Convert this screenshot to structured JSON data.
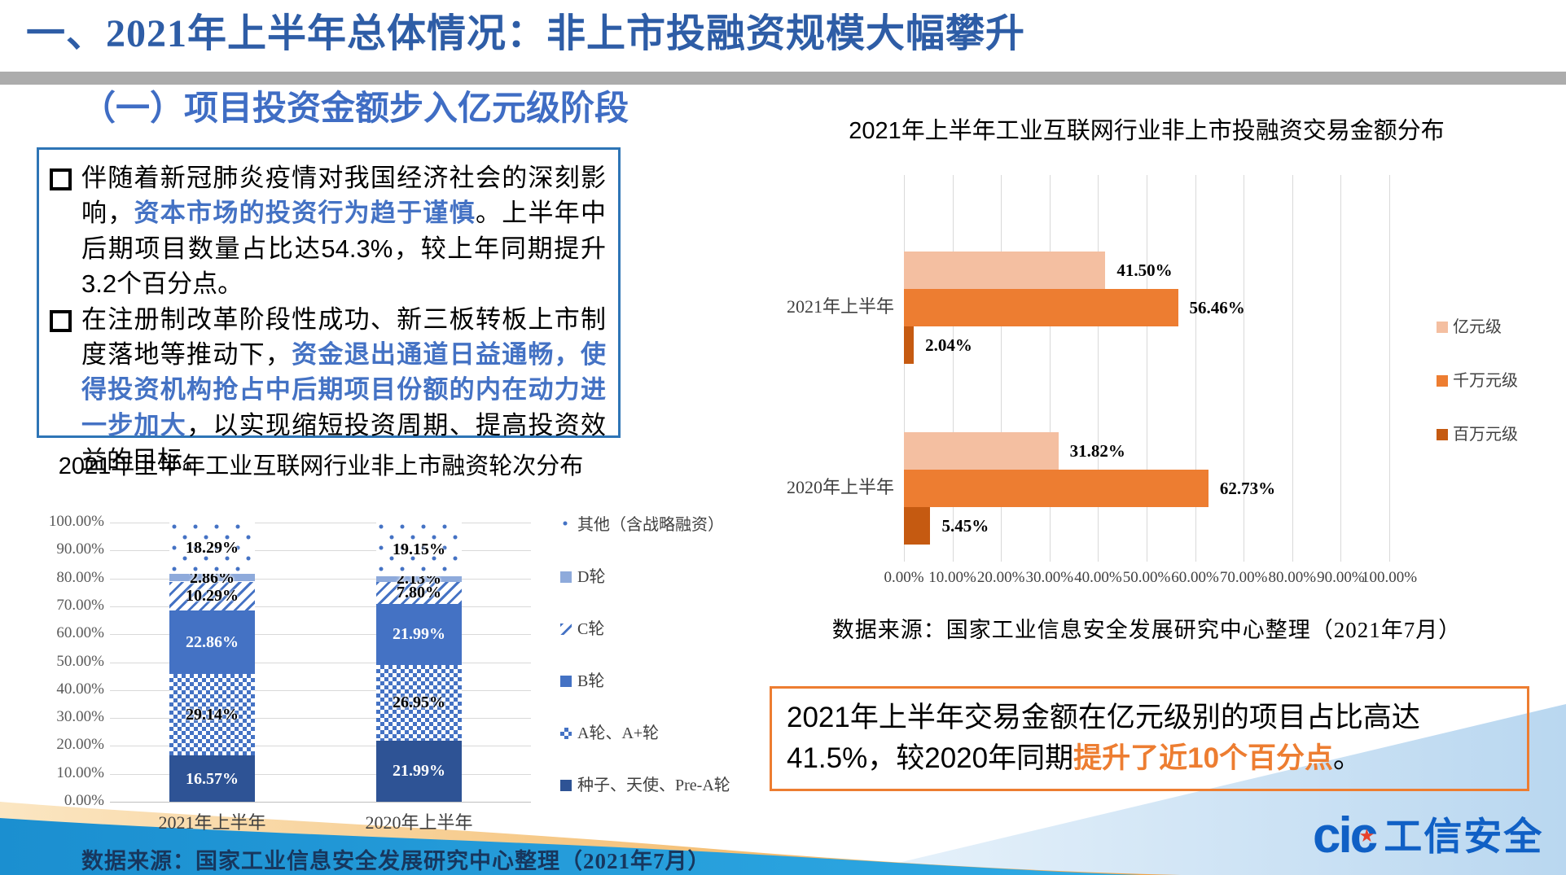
{
  "header": {
    "title": "一、2021年上半年总体情况：非上市投融资规模大幅攀升"
  },
  "left": {
    "subtitle": "（一）项目投资金额步入亿元级阶段",
    "bullets": [
      {
        "pre": "伴随着新冠肺炎疫情对我国经济社会的深刻影响，",
        "em": "资本市场的投资行为趋于谨慎",
        "post": "。上半年中后期项目数量占比达54.3%，较上年同期提升3.2个百分点。"
      },
      {
        "pre": "在注册制改革阶段性成功、新三板转板上市制度落地等推动下，",
        "em": "资金退出通道日益通畅，使得投资机构抢占中后期项目份额的内在动力进一步加大",
        "post": "，以实现缩短投资周期、提高投资效益的目标。"
      }
    ]
  },
  "right": {
    "callout": {
      "pre": "2021年上半年交易金额在亿元级别的项目占比高达41.5%，较2020年同期",
      "em": "提升了近10个百分点",
      "post": "。"
    }
  },
  "chart_data": [
    {
      "type": "bar",
      "subtype": "stacked-vertical",
      "title": "2021年上半年工业互联网行业非上市融资轮次分布",
      "categories": [
        "2021年上半年",
        "2020年上半年"
      ],
      "series": [
        {
          "name": "种子、天使、Pre-A轮",
          "values": [
            16.57,
            21.99
          ],
          "color": "#2E5395",
          "pattern": null,
          "label_color": "#FFFFFF"
        },
        {
          "name": "A轮、A+轮",
          "values": [
            29.14,
            26.95
          ],
          "color": null,
          "pattern": "checker",
          "label_color": "#000000"
        },
        {
          "name": "B轮",
          "values": [
            22.86,
            21.99
          ],
          "color": "#4472C4",
          "pattern": null,
          "label_color": "#FFFFFF"
        },
        {
          "name": "C轮",
          "values": [
            10.29,
            7.8
          ],
          "color": null,
          "pattern": "diag",
          "label_color": "#000000"
        },
        {
          "name": "D轮",
          "values": [
            2.86,
            2.13
          ],
          "color": "#8EAADB",
          "pattern": null,
          "label_color": "#000000"
        },
        {
          "name": "其他（含战略融资）",
          "values": [
            18.29,
            19.15
          ],
          "color": null,
          "pattern": "dots",
          "label_color": "#000000"
        }
      ],
      "legend_order": [
        5,
        4,
        3,
        2,
        1,
        0
      ],
      "legend_position": "right",
      "grid": true,
      "ylim": [
        0,
        100
      ],
      "ytick_step": 10,
      "tick_format": "0.00%",
      "source": "数据来源：国家工业信息安全发展研究中心整理（2021年7月）"
    },
    {
      "type": "bar",
      "subtype": "grouped-horizontal",
      "title": "2021年上半年工业互联网行业非上市投融资交易金额分布",
      "categories": [
        "2021年上半年",
        "2020年上半年"
      ],
      "series": [
        {
          "name": "亿元级",
          "values": [
            41.5,
            31.82
          ],
          "color": "#F4BFA1"
        },
        {
          "name": "千万元级",
          "values": [
            56.46,
            62.73
          ],
          "color": "#ED7D31"
        },
        {
          "name": "百万元级",
          "values": [
            2.04,
            5.45
          ],
          "color": "#C55A11"
        }
      ],
      "legend_position": "right",
      "grid": true,
      "xlim": [
        0,
        100
      ],
      "xtick_step": 10,
      "tick_format": "0.00%",
      "source": "数据来源：国家工业信息安全发展研究中心整理（2021年7月）"
    }
  ],
  "logo": {
    "mark": "cic",
    "star": "★",
    "text": "工信安全"
  },
  "colors": {
    "title_blue": "#2E5DA6",
    "subtitle_blue": "#3F6DC4",
    "emphasis_blue": "#4472C4",
    "box_border_blue": "#2E75B6",
    "callout_orange": "#ED7D31",
    "source_navy": "#17375E",
    "gray_band": "#ACACAC",
    "gridline": "#D9D9D9"
  }
}
